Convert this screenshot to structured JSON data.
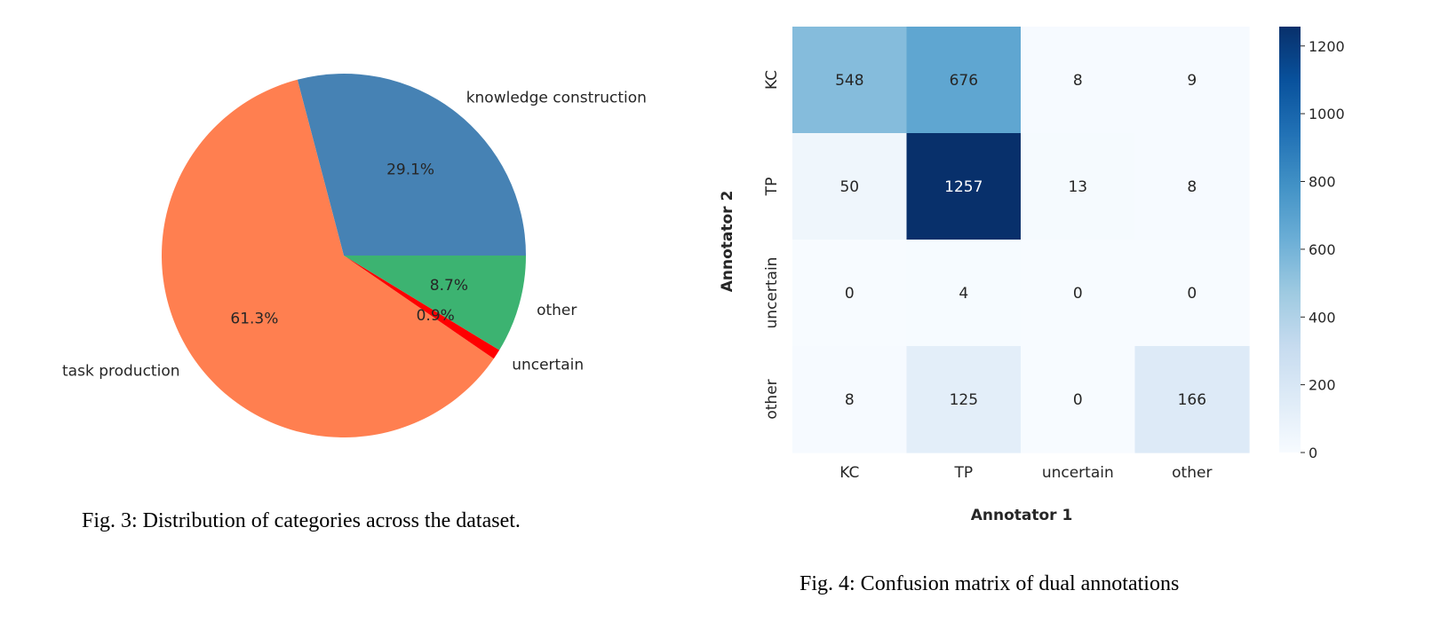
{
  "chart_data": [
    {
      "type": "pie",
      "slices": [
        {
          "label": "knowledge construction",
          "value": 29.1,
          "pct_label": "29.1%",
          "color": "#4682B4"
        },
        {
          "label": "task production",
          "value": 61.3,
          "pct_label": "61.3%",
          "color": "#FF7F50"
        },
        {
          "label": "uncertain",
          "value": 0.9,
          "pct_label": "0.9%",
          "color": "#FF0000"
        },
        {
          "label": "other",
          "value": 8.7,
          "pct_label": "8.7%",
          "color": "#3CB371"
        }
      ],
      "start_angle_deg": 0,
      "direction": "counterclockwise",
      "caption": "Fig. 3: Distribution of categories across the dataset."
    },
    {
      "type": "heatmap",
      "rows": [
        "KC",
        "TP",
        "uncertain",
        "other"
      ],
      "cols": [
        "KC",
        "TP",
        "uncertain",
        "other"
      ],
      "values": [
        [
          548,
          676,
          8,
          9
        ],
        [
          50,
          1257,
          13,
          8
        ],
        [
          0,
          4,
          0,
          0
        ],
        [
          8,
          125,
          0,
          166
        ]
      ],
      "xlabel": "Annotator 1",
      "ylabel": "Annotator 2",
      "colormap": "Blues",
      "colorbar": {
        "min": 0,
        "max": 1257,
        "ticks": [
          0,
          200,
          400,
          600,
          800,
          1000,
          1200
        ]
      },
      "caption": "Fig. 4: Confusion matrix of dual annotations"
    }
  ]
}
